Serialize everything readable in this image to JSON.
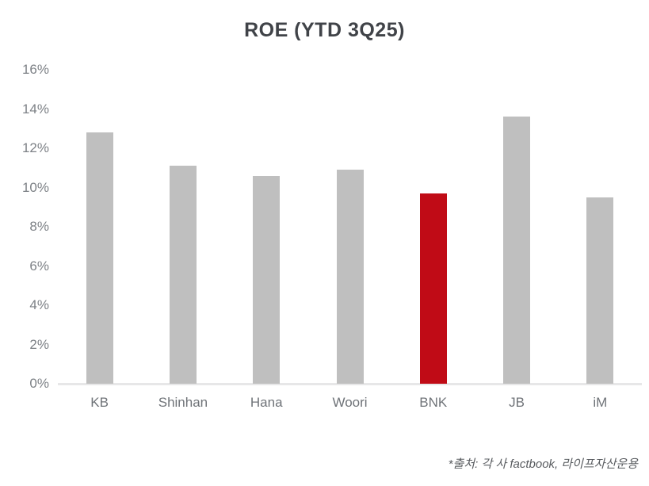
{
  "chart_data": {
    "type": "bar",
    "title": "ROE (YTD 3Q25)",
    "categories": [
      "KB",
      "Shinhan",
      "Hana",
      "Woori",
      "BNK",
      "JB",
      "iM"
    ],
    "values": [
      12.8,
      11.1,
      10.6,
      10.9,
      9.7,
      13.6,
      9.5
    ],
    "unit": "%",
    "ylabel": "",
    "xlabel": "",
    "ylim": [
      0,
      16
    ],
    "ytick_step": 2,
    "ytick_labels": [
      "0%",
      "2%",
      "4%",
      "6%",
      "8%",
      "10%",
      "12%",
      "14%",
      "16%"
    ],
    "grid": false,
    "legend": "none",
    "highlight_category": "BNK",
    "colors": {
      "bar": "#bfbfbf",
      "highlight": "#c00b16",
      "title_text": "#404348",
      "axis_text": "#7d8186",
      "baseline": "#e7e7e8"
    },
    "footnote": "*출처: 각 사 factbook, 라이프자산운용"
  }
}
